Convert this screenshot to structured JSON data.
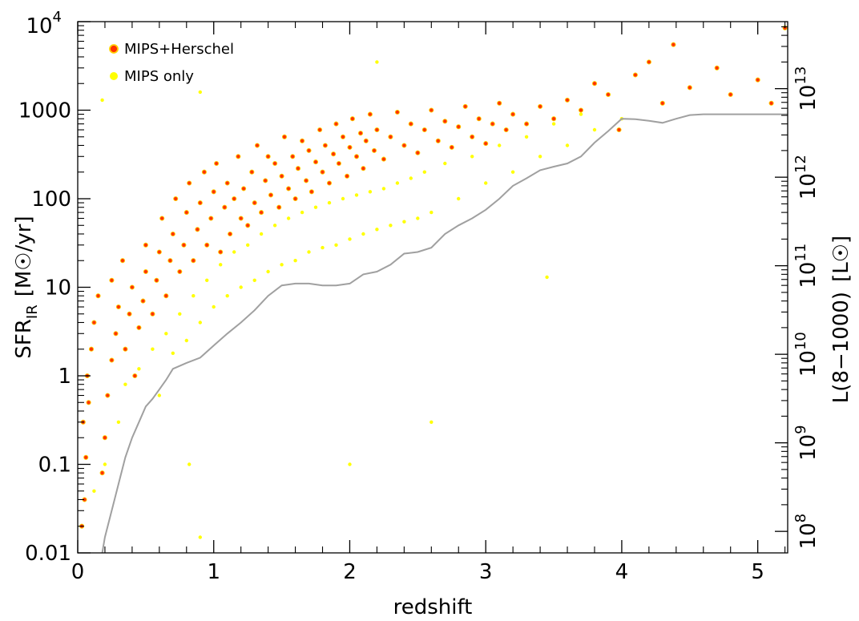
{
  "chart_data": {
    "type": "scatter",
    "title": "",
    "xlabel": "redshift",
    "ylabel_left": {
      "main": "SFR",
      "sub": "IR",
      "unit_open": "[M",
      "unit_close": "/yr]"
    },
    "ylabel_right": {
      "main": "L(8−1000)",
      "unit_open": "[L",
      "unit_close": "]"
    },
    "xlim": [
      0,
      5.22
    ],
    "ylim": [
      0.01,
      10000
    ],
    "yscale": "log",
    "x_ticks": [
      {
        "value": 0,
        "label": "0"
      },
      {
        "value": 1,
        "label": "1"
      },
      {
        "value": 2,
        "label": "2"
      },
      {
        "value": 3,
        "label": "3"
      },
      {
        "value": 4,
        "label": "4"
      },
      {
        "value": 5,
        "label": "5"
      }
    ],
    "y_ticks_left": [
      {
        "value": 0.01,
        "label": "0.01"
      },
      {
        "value": 0.1,
        "label": "0.1"
      },
      {
        "value": 1,
        "label": "1"
      },
      {
        "value": 10,
        "label": "10"
      },
      {
        "value": 100,
        "label": "100"
      },
      {
        "value": 1000,
        "label": "1000"
      },
      {
        "value": 10000,
        "label": "10",
        "sup": "4"
      }
    ],
    "y_ticks_right": [
      {
        "value": 0.0175,
        "base": "10",
        "sup": "8"
      },
      {
        "value": 0.175,
        "base": "10",
        "sup": "9"
      },
      {
        "value": 1.75,
        "base": "10",
        "sup": "10"
      },
      {
        "value": 17.5,
        "base": "10",
        "sup": "11"
      },
      {
        "value": 175,
        "base": "10",
        "sup": "12"
      },
      {
        "value": 1750,
        "base": "10",
        "sup": "13"
      }
    ],
    "legend": {
      "position": "top-left",
      "entries": [
        {
          "label": "MIPS+Herschel",
          "color": "#ff3300",
          "edge": "#ffd000"
        },
        {
          "label": "MIPS only",
          "color": "#ffff00"
        }
      ]
    },
    "colors": {
      "herschel_fill": "#ff3300",
      "herschel_edge": "#ffd000",
      "mips_only": "#ffff00",
      "limit_curve": "#a0a0a0"
    },
    "detection_limit": {
      "x": [
        0.18,
        0.2,
        0.25,
        0.3,
        0.35,
        0.4,
        0.45,
        0.5,
        0.55,
        0.6,
        0.65,
        0.7,
        0.8,
        0.9,
        1.0,
        1.1,
        1.2,
        1.3,
        1.4,
        1.5,
        1.6,
        1.7,
        1.8,
        1.9,
        2.0,
        2.1,
        2.2,
        2.3,
        2.4,
        2.5,
        2.6,
        2.7,
        2.8,
        2.9,
        3.0,
        3.1,
        3.2,
        3.3,
        3.4,
        3.5,
        3.6,
        3.7,
        3.8,
        3.9,
        4.0,
        4.1,
        4.2,
        4.3,
        4.4,
        4.5,
        4.6,
        4.8,
        5.0,
        5.22
      ],
      "y": [
        0.01,
        0.015,
        0.03,
        0.06,
        0.12,
        0.2,
        0.3,
        0.45,
        0.55,
        0.7,
        0.9,
        1.2,
        1.4,
        1.6,
        2.2,
        3.0,
        4.0,
        5.5,
        8.0,
        10.5,
        11.0,
        11.0,
        10.5,
        10.5,
        11.0,
        14.0,
        15.0,
        18.0,
        24.0,
        25.0,
        28.0,
        40.0,
        50.0,
        60.0,
        75.0,
        100.0,
        140.0,
        170.0,
        210.0,
        230.0,
        250.0,
        300.0,
        430.0,
        580.0,
        800.0,
        790.0,
        760.0,
        720.0,
        800.0,
        880.0,
        900.0,
        900.0,
        900.0,
        900.0
      ]
    },
    "series": [
      {
        "name": "MIPS+Herschel",
        "points": [
          [
            0.03,
            0.02
          ],
          [
            0.05,
            0.04
          ],
          [
            0.06,
            0.12
          ],
          [
            0.04,
            0.3
          ],
          [
            0.08,
            0.5
          ],
          [
            0.07,
            1.0
          ],
          [
            0.1,
            2.0
          ],
          [
            0.12,
            4.0
          ],
          [
            0.15,
            8.0
          ],
          [
            0.18,
            0.08
          ],
          [
            0.2,
            0.2
          ],
          [
            0.22,
            0.6
          ],
          [
            0.25,
            1.5
          ],
          [
            0.28,
            3.0
          ],
          [
            0.3,
            6.0
          ],
          [
            0.25,
            12.0
          ],
          [
            0.33,
            20.0
          ],
          [
            0.35,
            2.0
          ],
          [
            0.38,
            5.0
          ],
          [
            0.4,
            10.0
          ],
          [
            0.42,
            1.0
          ],
          [
            0.45,
            3.5
          ],
          [
            0.48,
            7.0
          ],
          [
            0.5,
            15.0
          ],
          [
            0.5,
            30.0
          ],
          [
            0.55,
            5.0
          ],
          [
            0.58,
            12.0
          ],
          [
            0.6,
            25.0
          ],
          [
            0.62,
            60.0
          ],
          [
            0.65,
            8.0
          ],
          [
            0.68,
            20.0
          ],
          [
            0.7,
            40.0
          ],
          [
            0.72,
            100.0
          ],
          [
            0.75,
            15.0
          ],
          [
            0.78,
            30.0
          ],
          [
            0.8,
            70.0
          ],
          [
            0.82,
            150.0
          ],
          [
            0.85,
            20.0
          ],
          [
            0.88,
            45.0
          ],
          [
            0.9,
            90.0
          ],
          [
            0.93,
            200.0
          ],
          [
            0.95,
            30.0
          ],
          [
            0.98,
            60.0
          ],
          [
            1.0,
            120.0
          ],
          [
            1.02,
            250.0
          ],
          [
            1.05,
            25.0
          ],
          [
            1.08,
            80.0
          ],
          [
            1.1,
            150.0
          ],
          [
            1.12,
            40.0
          ],
          [
            1.15,
            100.0
          ],
          [
            1.18,
            300.0
          ],
          [
            1.2,
            60.0
          ],
          [
            1.22,
            130.0
          ],
          [
            1.25,
            50.0
          ],
          [
            1.28,
            200.0
          ],
          [
            1.3,
            90.0
          ],
          [
            1.32,
            400.0
          ],
          [
            1.35,
            70.0
          ],
          [
            1.38,
            160.0
          ],
          [
            1.4,
            300.0
          ],
          [
            1.42,
            110.0
          ],
          [
            1.45,
            250.0
          ],
          [
            1.48,
            80.0
          ],
          [
            1.5,
            180.0
          ],
          [
            1.52,
            500.0
          ],
          [
            1.55,
            130.0
          ],
          [
            1.58,
            300.0
          ],
          [
            1.6,
            100.0
          ],
          [
            1.62,
            220.0
          ],
          [
            1.65,
            450.0
          ],
          [
            1.68,
            160.0
          ],
          [
            1.7,
            350.0
          ],
          [
            1.72,
            120.0
          ],
          [
            1.75,
            260.0
          ],
          [
            1.78,
            600.0
          ],
          [
            1.8,
            200.0
          ],
          [
            1.82,
            400.0
          ],
          [
            1.85,
            150.0
          ],
          [
            1.88,
            320.0
          ],
          [
            1.9,
            700.0
          ],
          [
            1.92,
            250.0
          ],
          [
            1.95,
            500.0
          ],
          [
            1.98,
            180.0
          ],
          [
            2.0,
            380.0
          ],
          [
            2.02,
            800.0
          ],
          [
            2.05,
            300.0
          ],
          [
            2.08,
            550.0
          ],
          [
            2.1,
            220.0
          ],
          [
            2.12,
            450.0
          ],
          [
            2.15,
            900.0
          ],
          [
            2.18,
            350.0
          ],
          [
            2.2,
            600.0
          ],
          [
            2.25,
            280.0
          ],
          [
            2.3,
            500.0
          ],
          [
            2.35,
            950.0
          ],
          [
            2.4,
            400.0
          ],
          [
            2.45,
            700.0
          ],
          [
            2.5,
            330.0
          ],
          [
            2.55,
            600.0
          ],
          [
            2.6,
            1000.0
          ],
          [
            2.65,
            450.0
          ],
          [
            2.7,
            750.0
          ],
          [
            2.75,
            380.0
          ],
          [
            2.8,
            650.0
          ],
          [
            2.85,
            1100.0
          ],
          [
            2.9,
            500.0
          ],
          [
            2.95,
            800.0
          ],
          [
            3.0,
            420.0
          ],
          [
            3.05,
            700.0
          ],
          [
            3.1,
            1200.0
          ],
          [
            3.15,
            600.0
          ],
          [
            3.2,
            900.0
          ],
          [
            3.3,
            700.0
          ],
          [
            3.4,
            1100.0
          ],
          [
            3.5,
            800.0
          ],
          [
            3.6,
            1300.0
          ],
          [
            3.7,
            1000.0
          ],
          [
            3.8,
            2000.0
          ],
          [
            3.9,
            1500.0
          ],
          [
            3.98,
            600.0
          ],
          [
            4.1,
            2500.0
          ],
          [
            4.2,
            3500.0
          ],
          [
            4.3,
            1200.0
          ],
          [
            4.38,
            5500.0
          ],
          [
            4.5,
            1800.0
          ],
          [
            4.7,
            3000.0
          ],
          [
            4.8,
            1500.0
          ],
          [
            5.0,
            2200.0
          ],
          [
            5.1,
            1200.0
          ],
          [
            5.2,
            8500.0
          ]
        ]
      },
      {
        "name": "MIPS only",
        "points": [
          [
            0.12,
            0.05
          ],
          [
            0.2,
            0.1
          ],
          [
            0.3,
            0.3
          ],
          [
            0.35,
            0.8
          ],
          [
            0.45,
            1.2
          ],
          [
            0.55,
            2.0
          ],
          [
            0.6,
            0.6
          ],
          [
            0.65,
            3.0
          ],
          [
            0.7,
            1.8
          ],
          [
            0.75,
            5.0
          ],
          [
            0.8,
            2.5
          ],
          [
            0.85,
            8.0
          ],
          [
            0.9,
            4.0
          ],
          [
            0.95,
            12.0
          ],
          [
            1.0,
            6.0
          ],
          [
            1.05,
            18.0
          ],
          [
            1.1,
            8.0
          ],
          [
            1.15,
            25.0
          ],
          [
            1.2,
            10.0
          ],
          [
            1.25,
            30.0
          ],
          [
            1.3,
            12.0
          ],
          [
            1.35,
            40.0
          ],
          [
            1.4,
            15.0
          ],
          [
            1.45,
            50.0
          ],
          [
            1.5,
            18.0
          ],
          [
            1.55,
            60.0
          ],
          [
            1.6,
            20.0
          ],
          [
            1.65,
            70.0
          ],
          [
            1.7,
            25.0
          ],
          [
            1.75,
            80.0
          ],
          [
            1.8,
            28.0
          ],
          [
            1.85,
            90.0
          ],
          [
            1.9,
            30.0
          ],
          [
            1.95,
            100.0
          ],
          [
            2.0,
            35.0
          ],
          [
            2.05,
            110.0
          ],
          [
            2.1,
            40.0
          ],
          [
            2.15,
            120.0
          ],
          [
            2.2,
            45.0
          ],
          [
            2.25,
            130.0
          ],
          [
            2.3,
            50.0
          ],
          [
            2.35,
            150.0
          ],
          [
            2.4,
            55.0
          ],
          [
            2.45,
            170.0
          ],
          [
            2.5,
            60.0
          ],
          [
            2.55,
            200.0
          ],
          [
            2.6,
            70.0
          ],
          [
            2.7,
            250.0
          ],
          [
            2.8,
            100.0
          ],
          [
            2.9,
            300.0
          ],
          [
            3.0,
            150.0
          ],
          [
            3.1,
            400.0
          ],
          [
            3.2,
            200.0
          ],
          [
            3.3,
            500.0
          ],
          [
            3.4,
            300.0
          ],
          [
            3.5,
            700.0
          ],
          [
            3.6,
            400.0
          ],
          [
            3.7,
            900.0
          ],
          [
            3.8,
            600.0
          ],
          [
            4.0,
            800.0
          ],
          [
            0.18,
            1300.0
          ],
          [
            0.9,
            1600.0
          ],
          [
            2.2,
            3500.0
          ],
          [
            0.82,
            0.1
          ],
          [
            0.9,
            0.015
          ],
          [
            2.6,
            0.3
          ],
          [
            3.45,
            13.0
          ],
          [
            2.0,
            0.1
          ]
        ]
      }
    ]
  }
}
